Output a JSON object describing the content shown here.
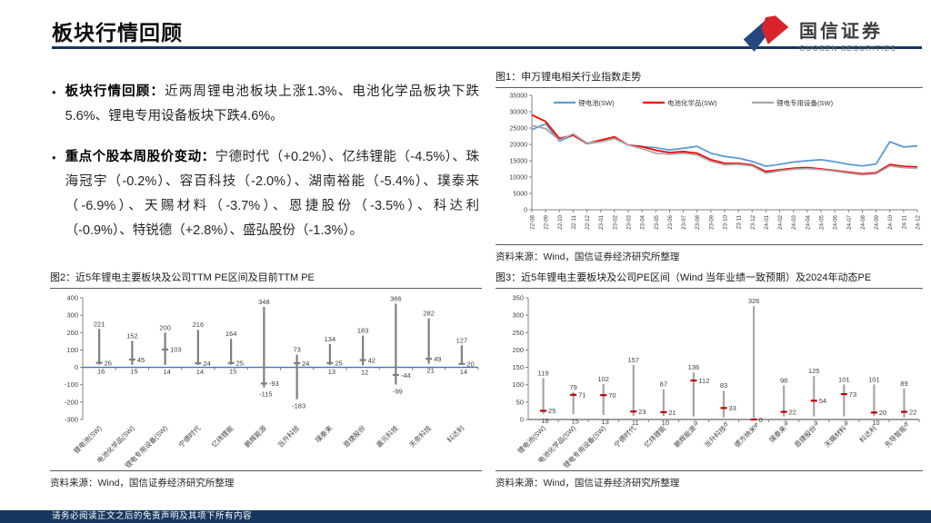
{
  "page": {
    "title": "板块行情回顾",
    "footer_disclaimer": "请务必阅读正文之后的免责声明及其项下所有内容"
  },
  "logo": {
    "name_cn": "国信证券",
    "name_en": "GUOSEN SECURITIES"
  },
  "colors": {
    "navy": "#17375E",
    "logo_blue": "#24477F",
    "logo_red": "#D8232A",
    "series_blue": "#5B9BD5",
    "series_red": "#FF0000",
    "series_gray": "#A6A6A6",
    "range_bar_gray": "#7F7F7F",
    "marker_red": "#C00000",
    "zero_line_blue": "#4472C4"
  },
  "bullets": [
    {
      "lead": "板块行情回顾：",
      "text": "近两周锂电池板块上涨1.3%、电池化学品板块下跌5.6%、锂电专用设备板块下跌4.6%。"
    },
    {
      "lead": "重点个股本周股价变动：",
      "text": "宁德时代（+0.2%）、亿纬锂能（-4.5%）、珠海冠宇（-0.2%）、容百科技（-2.0%）、湖南裕能（-5.4%）、璞泰来（-6.9%）、天赐材料（-3.7%）、恩捷股份（-3.5%）、科达利（-0.9%）、特锐德（+2.8%）、盛弘股份（-1.3%）。"
    }
  ],
  "chart_data": [
    {
      "type": "line",
      "title": "图1：申万锂电相关行业指数走势",
      "source": "资料来源：Wind，国信证券经济研究所整理",
      "ylim": [
        0,
        35000
      ],
      "ytick": 5000,
      "legend_position": "top",
      "grid": false,
      "x": [
        "22-08",
        "22-09",
        "22-10",
        "22-11",
        "22-12",
        "23-01",
        "23-02",
        "23-03",
        "23-04",
        "23-05",
        "23-06",
        "23-07",
        "23-08",
        "23-09",
        "23-10",
        "23-11",
        "23-12",
        "24-01",
        "24-02",
        "24-03",
        "24-04",
        "24-05",
        "24-06",
        "24-07",
        "24-08",
        "24-09",
        "24-10",
        "24-11",
        "24-12"
      ],
      "series": [
        {
          "name": "锂电池(SW)",
          "color": "#5B9BD5",
          "values": [
            24500,
            26300,
            21000,
            22800,
            20200,
            20800,
            21800,
            19800,
            19300,
            19000,
            18300,
            18800,
            19400,
            17300,
            16300,
            15800,
            14800,
            13300,
            13900,
            14600,
            15000,
            15300,
            14700,
            13900,
            13400,
            14000,
            20800,
            19200,
            19500
          ]
        },
        {
          "name": "电池化学品(SW)",
          "color": "#FF0000",
          "values": [
            29000,
            27000,
            21800,
            22800,
            20300,
            21300,
            22300,
            19800,
            19300,
            18200,
            17500,
            17800,
            17300,
            15300,
            14200,
            14200,
            13700,
            11700,
            12200,
            12700,
            12900,
            12500,
            12000,
            11500,
            11000,
            11300,
            13800,
            13300,
            13100
          ]
        },
        {
          "name": "锂电专用设备(SW)",
          "color": "#A6A6A6",
          "values": [
            25800,
            24800,
            21300,
            23200,
            20400,
            20800,
            21800,
            19800,
            18700,
            17300,
            17000,
            17300,
            16800,
            14800,
            13800,
            13900,
            13400,
            11200,
            11900,
            12400,
            12600,
            12300,
            11800,
            11200,
            10700,
            11000,
            13400,
            12900,
            12700
          ]
        }
      ]
    },
    {
      "type": "range-bar",
      "title": "图2：近5年锂电主要板块及公司TTM PE区间及目前TTM PE",
      "source": "资料来源：Wind，国信证券经济研究所整理",
      "ylim": [
        -300,
        400
      ],
      "ytick": 100,
      "bar_color": "#7F7F7F",
      "marker_color": "#7F7F7F",
      "zero_line_color": "#4472C4",
      "categories": [
        {
          "name": "锂电池(SW)",
          "max": 221,
          "min": 16,
          "cur": 26
        },
        {
          "name": "电池化学品(SW)",
          "max": 152,
          "min": 15,
          "cur": 45
        },
        {
          "name": "锂电专用设备(SW)",
          "max": 200,
          "min": 14,
          "cur": 103
        },
        {
          "name": "宁德时代",
          "max": 216,
          "min": 14,
          "cur": 24
        },
        {
          "name": "亿纬锂能",
          "max": 164,
          "min": 15,
          "cur": 25
        },
        {
          "name": "鹏辉能源",
          "max": 348,
          "min": -115,
          "cur": -93
        },
        {
          "name": "当升科技",
          "max": 73,
          "min": -183,
          "cur": 24
        },
        {
          "name": "璞泰来",
          "max": 134,
          "min": 13,
          "cur": 25
        },
        {
          "name": "恩捷股份",
          "max": 183,
          "min": 12,
          "cur": 42
        },
        {
          "name": "嘉元科技",
          "max": 366,
          "min": -99,
          "cur": -44
        },
        {
          "name": "天奈科技",
          "max": 282,
          "min": 21,
          "cur": 49
        },
        {
          "name": "科达利",
          "max": 127,
          "min": 14,
          "cur": 20
        }
      ]
    },
    {
      "type": "range-bar",
      "title": "图3：近5年锂电主要板块及公司PE区间（Wind 当年业绩一致预期）及2024年动态PE",
      "source": "资料来源：Wind，国信证券经济研究所整理",
      "ylim": [
        0,
        350
      ],
      "ytick": 50,
      "bar_color": "#A6A6A6",
      "marker_color": "#C00000",
      "zero_line_color": "#808080",
      "categories": [
        {
          "name": "锂电池(SW)",
          "max": 119,
          "min": 16,
          "cur": 25
        },
        {
          "name": "电池化学品(SW)",
          "max": 79,
          "min": 15,
          "cur": 71
        },
        {
          "name": "锂电专用设备(SW)",
          "max": 102,
          "min": 13,
          "cur": 70
        },
        {
          "name": "宁德时代",
          "max": 157,
          "min": 11,
          "cur": 23
        },
        {
          "name": "亿纬锂能",
          "max": 87,
          "min": 10,
          "cur": 21
        },
        {
          "name": "鹏辉能源",
          "max": 136,
          "min": 9,
          "cur": 112
        },
        {
          "name": "当升科技",
          "max": 83,
          "min": 6,
          "cur": 33
        },
        {
          "name": "德方纳米",
          "max": 326,
          "min": 4,
          "cur": 0
        },
        {
          "name": "璞泰来",
          "max": 98,
          "min": 9,
          "cur": 22
        },
        {
          "name": "恩捷股份",
          "max": 125,
          "min": 9,
          "cur": 54
        },
        {
          "name": "天赐材料",
          "max": 101,
          "min": 9,
          "cur": 73
        },
        {
          "name": "科达利",
          "max": 101,
          "min": 10,
          "cur": 20
        },
        {
          "name": "先导智能",
          "max": 89,
          "min": 6,
          "cur": 22
        }
      ]
    }
  ]
}
